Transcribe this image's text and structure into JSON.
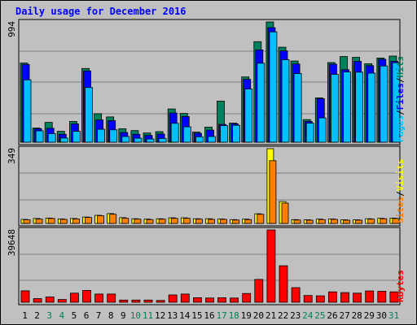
{
  "title": "Daily usage for December 2016",
  "colors": {
    "hits": "#00805C",
    "files": "#0000FF",
    "pages": "#00C0FF",
    "visits": "#FFFF00",
    "sites": "#FF8000",
    "kbytes": "#FF0000",
    "weekend_label": "#00805C",
    "weekday_label": "#000000",
    "background": "#C0C0C0"
  },
  "chart_data": [
    {
      "type": "bar",
      "panel": "hits-files-pages",
      "ymax_label": "994",
      "ymax": 994,
      "legend": [
        "Pages",
        "/",
        "Files",
        "/",
        "Hits"
      ],
      "categories": [
        "1",
        "2",
        "3",
        "4",
        "5",
        "6",
        "7",
        "8",
        "9",
        "10",
        "11",
        "12",
        "13",
        "14",
        "15",
        "16",
        "17",
        "18",
        "19",
        "20",
        "21",
        "22",
        "23",
        "24",
        "25",
        "26",
        "27",
        "28",
        "29",
        "30",
        "31"
      ],
      "series": [
        {
          "name": "Hits",
          "values": [
            654,
            117,
            164,
            90,
            171,
            609,
            236,
            209,
            111,
            96,
            76,
            87,
            275,
            238,
            84,
            124,
            339,
            158,
            539,
            831,
            994,
            785,
            671,
            187,
            367,
            658,
            708,
            701,
            649,
            696,
            712
          ]
        },
        {
          "name": "Files",
          "values": [
            643,
            111,
            115,
            65,
            152,
            589,
            184,
            178,
            80,
            65,
            56,
            67,
            241,
            212,
            74,
            100,
            147,
            151,
            520,
            763,
            946,
            755,
            647,
            172,
            359,
            645,
            599,
            668,
            633,
            685,
            668
          ]
        },
        {
          "name": "Pages",
          "values": [
            515,
            94,
            71,
            34,
            90,
            452,
            107,
            102,
            47,
            33,
            26,
            31,
            156,
            127,
            45,
            47,
            137,
            140,
            439,
            653,
            912,
            682,
            567,
            157,
            201,
            561,
            580,
            579,
            571,
            630,
            657
          ]
        }
      ]
    },
    {
      "type": "bar",
      "panel": "visits-sites",
      "ymax_label": "349",
      "ymax": 349,
      "legend": [
        "Sites",
        "/",
        "Visits"
      ],
      "categories": [
        "1",
        "2",
        "3",
        "4",
        "5",
        "6",
        "7",
        "8",
        "9",
        "10",
        "11",
        "12",
        "13",
        "14",
        "15",
        "16",
        "17",
        "18",
        "19",
        "20",
        "21",
        "22",
        "23",
        "24",
        "25",
        "26",
        "27",
        "28",
        "29",
        "30",
        "31"
      ],
      "series": [
        {
          "name": "Visits",
          "values": [
            19,
            23,
            25,
            21,
            23,
            30,
            38,
            46,
            27,
            22,
            20,
            22,
            26,
            26,
            22,
            22,
            21,
            18,
            20,
            45,
            349,
            102,
            18,
            17,
            20,
            21,
            17,
            17,
            22,
            24,
            25
          ]
        },
        {
          "name": "Sites",
          "values": [
            17,
            20,
            23,
            19,
            21,
            28,
            36,
            43,
            24,
            20,
            18,
            20,
            24,
            24,
            20,
            19,
            19,
            16,
            18,
            43,
            293,
            95,
            16,
            15,
            18,
            19,
            15,
            15,
            20,
            22,
            23
          ]
        }
      ]
    },
    {
      "type": "bar",
      "panel": "kbytes",
      "ymax_label": "39648",
      "ymax": 39648,
      "legend": [
        "KBytes"
      ],
      "categories": [
        "1",
        "2",
        "3",
        "4",
        "5",
        "6",
        "7",
        "8",
        "9",
        "10",
        "11",
        "12",
        "13",
        "14",
        "15",
        "16",
        "17",
        "18",
        "19",
        "20",
        "21",
        "22",
        "23",
        "24",
        "25",
        "26",
        "27",
        "28",
        "29",
        "30",
        "31"
      ],
      "series": [
        {
          "name": "KBytes",
          "values": [
            6300,
            2000,
            2900,
            1500,
            5000,
            6500,
            4500,
            4500,
            1200,
            1200,
            1200,
            1000,
            4000,
            4500,
            2500,
            2300,
            2500,
            2300,
            4800,
            12500,
            39648,
            20000,
            8000,
            3700,
            3500,
            5700,
            5300,
            5000,
            6200,
            6000,
            5700
          ]
        }
      ]
    }
  ],
  "days": [
    {
      "label": "1",
      "weekend": false
    },
    {
      "label": "2",
      "weekend": false
    },
    {
      "label": "3",
      "weekend": true
    },
    {
      "label": "4",
      "weekend": true
    },
    {
      "label": "5",
      "weekend": false
    },
    {
      "label": "6",
      "weekend": false
    },
    {
      "label": "7",
      "weekend": false
    },
    {
      "label": "8",
      "weekend": false
    },
    {
      "label": "9",
      "weekend": false
    },
    {
      "label": "10",
      "weekend": true
    },
    {
      "label": "11",
      "weekend": true
    },
    {
      "label": "12",
      "weekend": false
    },
    {
      "label": "13",
      "weekend": false
    },
    {
      "label": "14",
      "weekend": false
    },
    {
      "label": "15",
      "weekend": false
    },
    {
      "label": "16",
      "weekend": false
    },
    {
      "label": "17",
      "weekend": true
    },
    {
      "label": "18",
      "weekend": true
    },
    {
      "label": "19",
      "weekend": false
    },
    {
      "label": "20",
      "weekend": false
    },
    {
      "label": "21",
      "weekend": false
    },
    {
      "label": "22",
      "weekend": false
    },
    {
      "label": "23",
      "weekend": false
    },
    {
      "label": "24",
      "weekend": true
    },
    {
      "label": "25",
      "weekend": true
    },
    {
      "label": "26",
      "weekend": false
    },
    {
      "label": "27",
      "weekend": false
    },
    {
      "label": "28",
      "weekend": false
    },
    {
      "label": "29",
      "weekend": false
    },
    {
      "label": "30",
      "weekend": false
    },
    {
      "label": "31",
      "weekend": true
    }
  ]
}
